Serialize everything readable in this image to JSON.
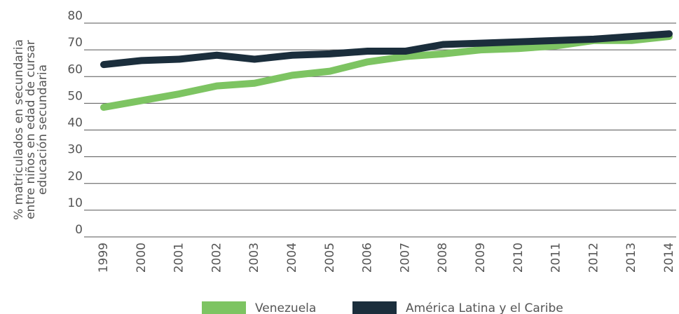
{
  "chart_data": {
    "type": "line",
    "ylabel": [
      "% matriculados en secundaria",
      "entre niños en edad de cursar",
      "educación secundaria"
    ],
    "categories": [
      "1999",
      "2000",
      "2001",
      "2002",
      "2003",
      "2004",
      "2005",
      "2006",
      "2007",
      "2008",
      "2009",
      "2010",
      "2011",
      "2012",
      "2013",
      "2014"
    ],
    "series": [
      {
        "name": "Venezuela",
        "color": "#7dc462",
        "values": [
          48.5,
          51,
          53.5,
          56.5,
          57.5,
          60.5,
          62,
          65.5,
          67.5,
          68.5,
          70,
          70.5,
          71.5,
          73.5,
          73.5,
          75
        ]
      },
      {
        "name": "América Latina y el Caribe",
        "color": "#1b2e3c",
        "values": [
          64.5,
          66,
          66.5,
          68,
          66.5,
          68,
          68.5,
          69.5,
          69.5,
          72,
          72.5,
          73,
          73.5,
          74,
          75,
          76
        ]
      }
    ],
    "ylim": [
      0,
      80
    ],
    "yticks": [
      0,
      10,
      20,
      30,
      40,
      50,
      60,
      70,
      80
    ],
    "grid": true
  }
}
